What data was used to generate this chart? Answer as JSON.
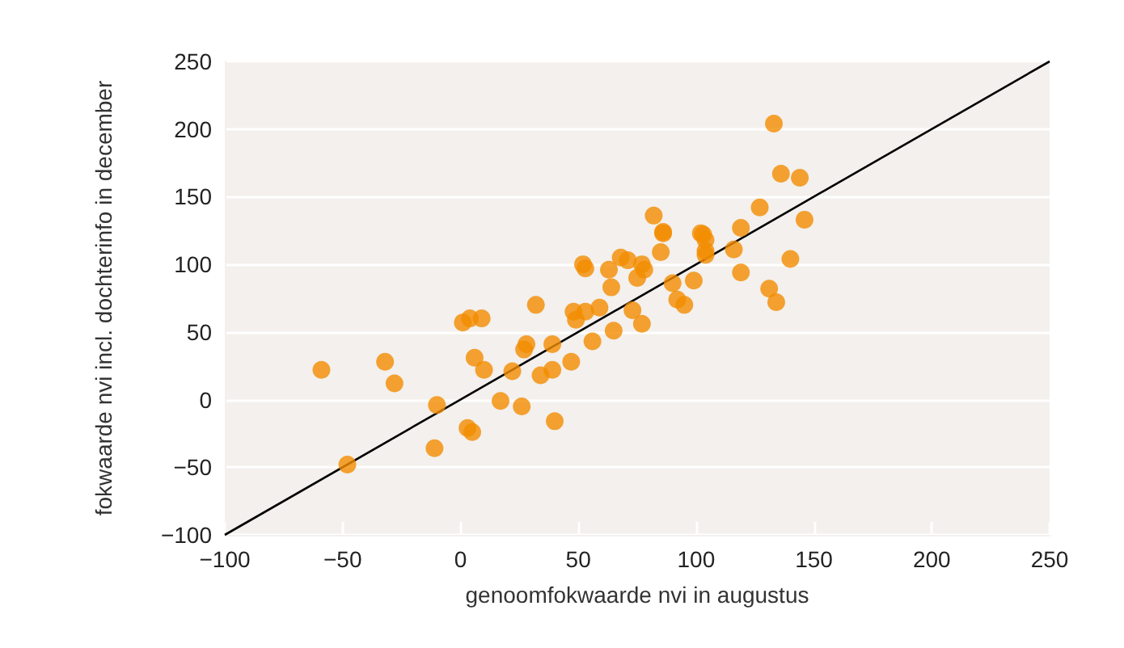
{
  "chart_data": {
    "type": "scatter",
    "xlabel": "genoomfokwaarde nvi in augustus",
    "ylabel": "fokwaarde nvi incl. dochterinfo in december",
    "xlim": [
      -100,
      250
    ],
    "xticks": [
      -100,
      -50,
      0,
      50,
      100,
      150,
      200,
      250
    ],
    "ylim": [
      -100,
      250
    ],
    "yticks": [
      -100,
      -50,
      0,
      50,
      100,
      150,
      200,
      250
    ],
    "grid": "y",
    "marker": "circle",
    "series": [
      {
        "color": "#f28c00",
        "x": [
          -59,
          -32,
          -28,
          -48,
          -10,
          -11,
          1,
          4,
          9,
          32,
          6,
          10,
          22,
          27,
          28,
          39,
          34,
          39,
          47,
          56,
          65,
          17,
          26,
          40,
          3,
          5,
          48,
          49,
          53,
          59,
          52,
          53,
          63,
          64,
          68,
          71,
          77,
          78,
          75,
          85,
          86,
          73,
          77,
          90,
          92,
          95,
          99,
          102,
          104,
          104,
          116,
          119,
          119,
          133,
          136,
          144,
          127,
          146,
          140,
          131,
          134,
          82,
          86,
          103,
          104
        ],
        "values": [
          22,
          28,
          12,
          -48,
          -4,
          -36,
          57,
          60,
          60,
          70,
          31,
          22,
          21,
          37,
          41,
          41,
          18,
          22,
          28,
          43,
          51,
          -1,
          -5,
          -16,
          -21,
          -24,
          65,
          59,
          65,
          68,
          100,
          97,
          96,
          83,
          105,
          103,
          100,
          96,
          90,
          109,
          123,
          66,
          56,
          86,
          74,
          70,
          88,
          123,
          118,
          110,
          111,
          94,
          127,
          204,
          167,
          164,
          142,
          133,
          104,
          82,
          72,
          136,
          124,
          122,
          107
        ]
      },
      {
        "type": "line",
        "color": "#000000",
        "marker": "none",
        "x": [
          -100,
          250
        ],
        "values": [
          -100,
          250
        ]
      }
    ]
  }
}
